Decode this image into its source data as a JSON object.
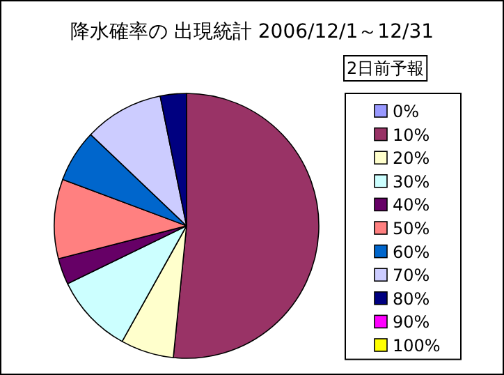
{
  "chart_data": {
    "type": "pie",
    "title": "降水確率の 出現統計  2006/12/1～12/31",
    "legend_title": "2日前予報",
    "legend": "right",
    "categories": [
      "0%",
      "10%",
      "20%",
      "30%",
      "40%",
      "50%",
      "60%",
      "70%",
      "80%",
      "90%",
      "100%"
    ],
    "values": [
      0,
      51.6,
      6.5,
      9.7,
      3.2,
      9.7,
      6.4,
      9.7,
      3.2,
      0,
      0
    ],
    "colors": [
      "#9999ff",
      "#993366",
      "#ffffcc",
      "#ccffff",
      "#660066",
      "#ff8080",
      "#0066cc",
      "#ccccff",
      "#000080",
      "#ff00ff",
      "#ffff00"
    ]
  }
}
